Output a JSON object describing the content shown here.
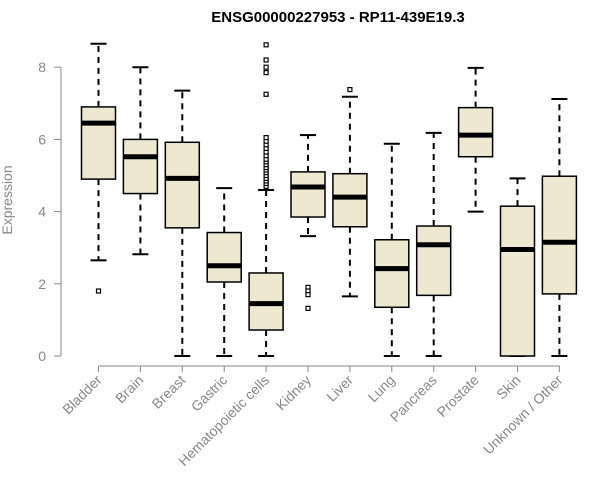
{
  "chart_data": {
    "type": "boxplot",
    "title": "ENSG00000227953 - RP11-439E19.3",
    "xlabel": "",
    "ylabel": "Expression",
    "ylim": [
      0,
      8.8
    ],
    "yticks": [
      0,
      2,
      4,
      6,
      8
    ],
    "colors": {
      "box_fill": "#EEE8D0",
      "stroke": "#000000",
      "axis": "#888888"
    },
    "categories": [
      "Bladder",
      "Brain",
      "Breast",
      "Gastric",
      "Hematopoietic cells",
      "Kidney",
      "Liver",
      "Lung",
      "Pancreas",
      "Prostate",
      "Skin",
      "Unknown / Other"
    ],
    "boxes": [
      {
        "name": "Bladder",
        "whisker_low": 2.65,
        "q1": 4.9,
        "median": 6.45,
        "q3": 6.9,
        "whisker_high": 8.65,
        "outliers": [
          1.8
        ]
      },
      {
        "name": "Brain",
        "whisker_low": 2.82,
        "q1": 4.5,
        "median": 5.52,
        "q3": 6.0,
        "whisker_high": 8.0,
        "outliers": []
      },
      {
        "name": "Breast",
        "whisker_low": 0.0,
        "q1": 3.55,
        "median": 4.92,
        "q3": 5.92,
        "whisker_high": 7.35,
        "outliers": []
      },
      {
        "name": "Gastric",
        "whisker_low": 0.0,
        "q1": 2.05,
        "median": 2.5,
        "q3": 3.42,
        "whisker_high": 4.65,
        "outliers": []
      },
      {
        "name": "Hematopoietic cells",
        "whisker_low": 0.0,
        "q1": 0.72,
        "median": 1.45,
        "q3": 2.3,
        "whisker_high": 4.6,
        "outliers": [
          4.7,
          4.78,
          4.85,
          4.92,
          5.0,
          5.08,
          5.15,
          5.22,
          5.3,
          5.38,
          5.45,
          5.55,
          5.65,
          5.75,
          5.85,
          5.95,
          6.05,
          7.25,
          7.85,
          8.0,
          8.2,
          8.62
        ]
      },
      {
        "name": "Kidney",
        "whisker_low": 3.32,
        "q1": 3.85,
        "median": 4.68,
        "q3": 5.1,
        "whisker_high": 6.12,
        "outliers": [
          1.9,
          1.8,
          1.7,
          1.32
        ]
      },
      {
        "name": "Liver",
        "whisker_low": 1.65,
        "q1": 3.58,
        "median": 4.4,
        "q3": 5.05,
        "whisker_high": 7.18,
        "outliers": [
          7.38
        ]
      },
      {
        "name": "Lung",
        "whisker_low": 0.0,
        "q1": 1.35,
        "median": 2.42,
        "q3": 3.22,
        "whisker_high": 5.88,
        "outliers": []
      },
      {
        "name": "Pancreas",
        "whisker_low": 0.0,
        "q1": 1.68,
        "median": 3.08,
        "q3": 3.6,
        "whisker_high": 6.18,
        "outliers": []
      },
      {
        "name": "Prostate",
        "whisker_low": 4.0,
        "q1": 5.52,
        "median": 6.12,
        "q3": 6.88,
        "whisker_high": 7.98,
        "outliers": []
      },
      {
        "name": "Skin",
        "whisker_low": 0.0,
        "q1": 0.0,
        "median": 2.95,
        "q3": 4.15,
        "whisker_high": 4.92,
        "outliers": []
      },
      {
        "name": "Unknown / Other",
        "whisker_low": 0.0,
        "q1": 1.72,
        "median": 3.15,
        "q3": 4.98,
        "whisker_high": 7.12,
        "outliers": []
      }
    ]
  }
}
